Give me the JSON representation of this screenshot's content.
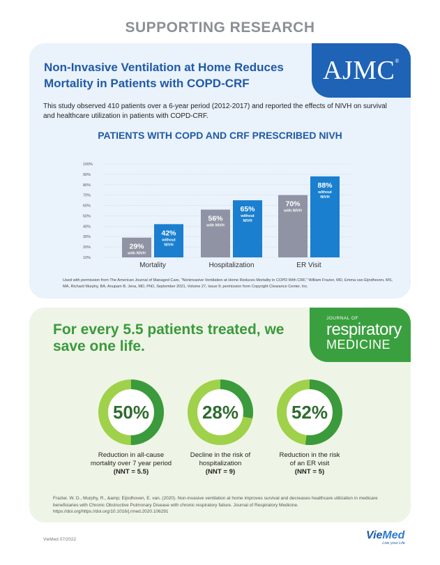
{
  "header": {
    "title": "SUPPORTING RESEARCH"
  },
  "ajmc_section": {
    "logo_text": "AJMC",
    "logo_mark": "®",
    "title": "Non-Invasive Ventilation at Home Reduces Mortality in Patients with COPD-CRF",
    "description": "This study observed 410 patients over a 6-year period (2012-2017) and reported the effects of NIVH on survival and healthcare utilization in patients with COPD-CRF.",
    "chart_heading": "PATIENTS WITH COPD AND CRF PRESCRIBED NIVH",
    "permission": "Used with permission from The American Journal of Managed Care, \"Noninvasive Ventilation at Home Reduces Mortality in COPD With CRF,\" William Frazier, MD, Emma van Eijndhoven, MS, MA, Richard Murphy, BA, Anupam B. Jena, MD, PhD, September 2021, Volume 27, Issue 9; permission from Copyright Clearance Center, Inc."
  },
  "chart_data": {
    "type": "bar",
    "title": "PATIENTS WITH COPD AND CRF PRESCRIBED NIVH",
    "categories": [
      "Mortality",
      "Hospitalization",
      "ER Visit"
    ],
    "series": [
      {
        "name": "with NIVH",
        "values": [
          29,
          56,
          70
        ],
        "labels": [
          "29%",
          "56%",
          "70%"
        ],
        "sublabel": "with NIVH"
      },
      {
        "name": "without NIVH",
        "values": [
          42,
          65,
          88
        ],
        "labels": [
          "42%",
          "65%",
          "88%"
        ],
        "sublabel": "without NIVH"
      }
    ],
    "yticks": [
      "10%",
      "20%",
      "30%",
      "40%",
      "50%",
      "60%",
      "70%",
      "80%",
      "90%",
      "100%"
    ],
    "ylim": [
      10,
      100
    ],
    "grid": true,
    "colors": {
      "with": "#8f93a3",
      "without": "#1a7fcf"
    }
  },
  "jrm_section": {
    "logo_line1": "JOURNAL OF",
    "logo_line2": "respiratory",
    "logo_line3": "MEDICINE",
    "title": "For every 5.5 patients treated, we save one life.",
    "stats": [
      {
        "value": "50%",
        "fraction": 0.5,
        "line1": "Reduction in all-cause",
        "line2": "mortality over 7 year period",
        "nnt": "(NNT = 5.5)"
      },
      {
        "value": "28%",
        "fraction": 0.28,
        "line1": "Decline in the risk of",
        "line2": "hospitalization",
        "nnt": "(NNT = 9)"
      },
      {
        "value": "52%",
        "fraction": 0.52,
        "line1": "Reduction in the risk",
        "line2": "of an ER visit",
        "nnt": "(NNT = 5)"
      }
    ],
    "citation": "Frazier, W. D., Murphy, R., &amp; Eijndhoven, E. van. (2020). Non-invasive ventilation at home improves survival and decreases healthcare utilization in medicare beneficiaries with Chronic Obstructive Pulmonary Disease with chronic respiratory failure. Journal of Respiratory Medicine. https://doi.org/https://doi.org/10.1016/j.rmed.2020.106291",
    "colors": {
      "dark": "#3a9a3c",
      "light": "#9fd14a"
    }
  },
  "footer": {
    "left_text": "VieMed 07/2022",
    "brand_name_a": "Vie",
    "brand_name_b": "Med",
    "tagline": "Live your Life"
  }
}
